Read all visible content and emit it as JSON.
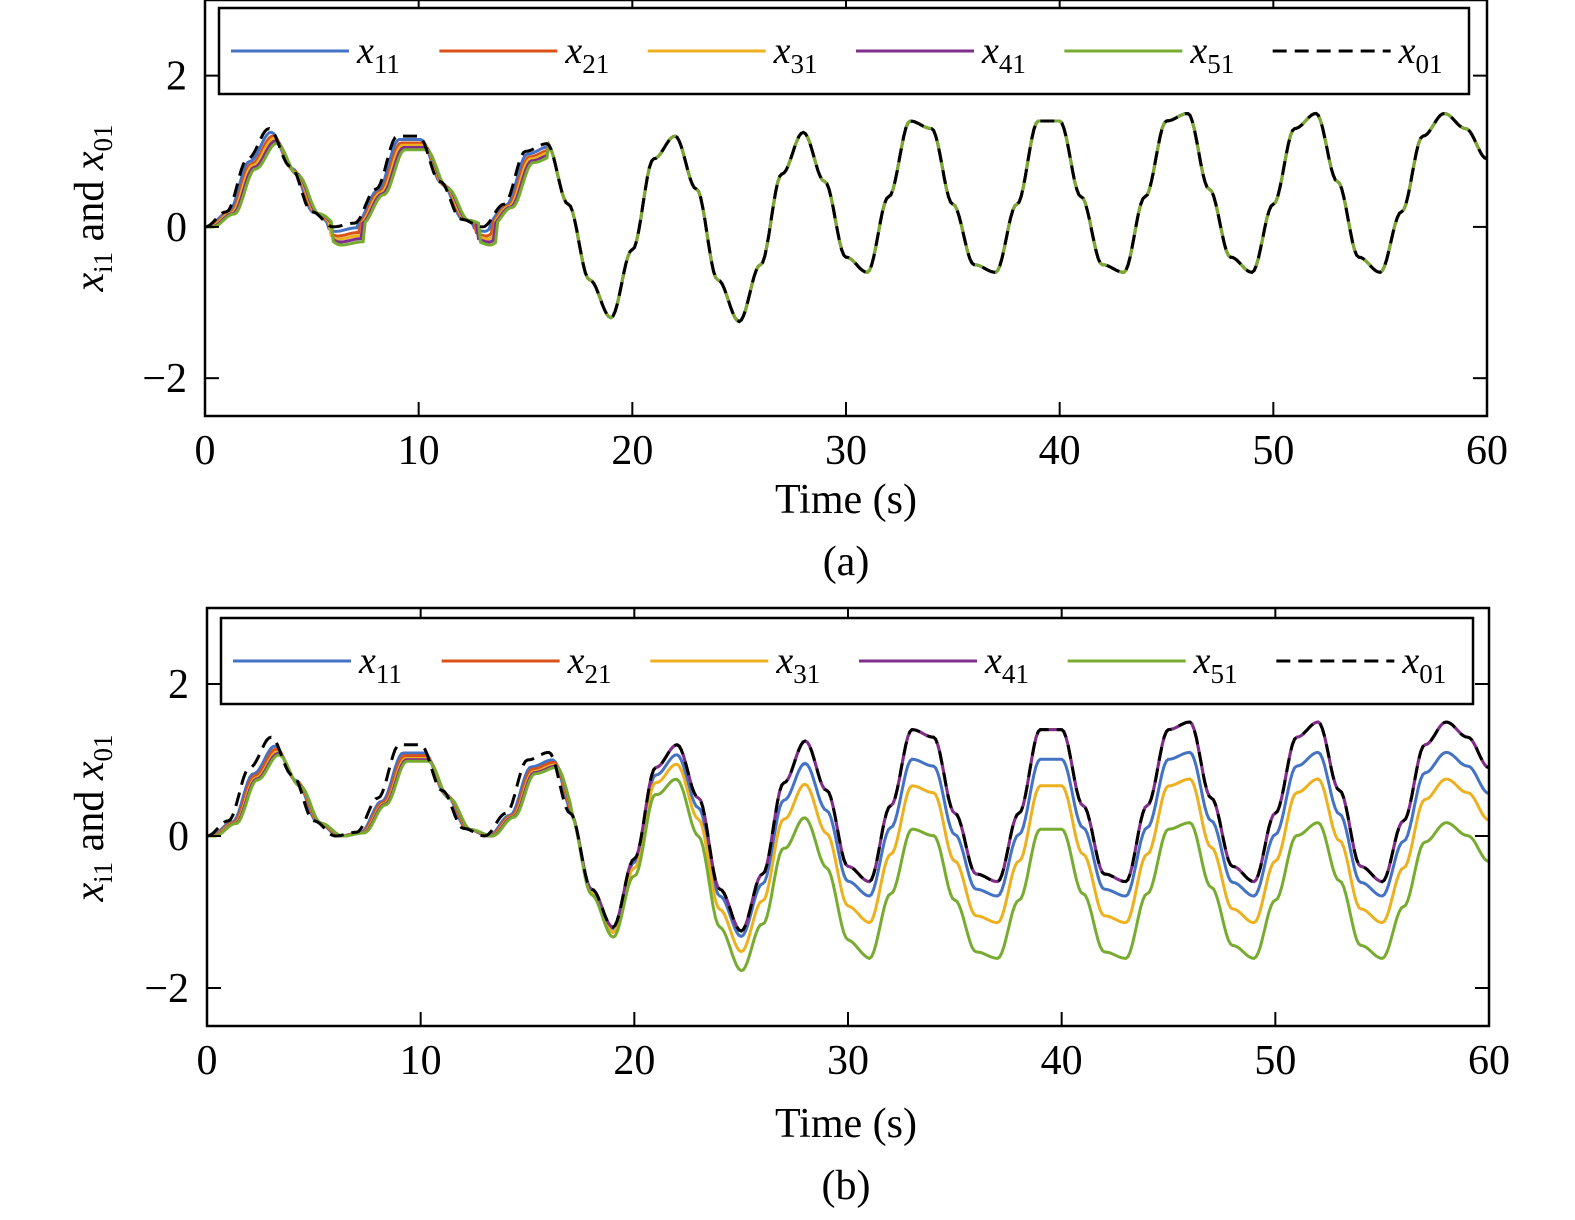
{
  "chart_data": [
    {
      "panel": "(a)",
      "type": "line",
      "xlabel": "Time (s)",
      "ylabel": "x_i1 and x_01",
      "ylabel_parts": {
        "a": "x",
        "a_sub": "i1",
        "mid": " and ",
        "b": "x",
        "b_sub": "01"
      },
      "xlim": [
        0,
        60
      ],
      "ylim": [
        -2.5,
        3
      ],
      "xticks": [
        0,
        10,
        20,
        30,
        40,
        50,
        60
      ],
      "yticks": [
        -2,
        0,
        2
      ],
      "ytick_labels": [
        "−2",
        "0",
        "2"
      ],
      "legend_position": "top",
      "series": [
        {
          "name": "x",
          "sub": "11",
          "color": "#4472C4",
          "dash": "solid"
        },
        {
          "name": "x",
          "sub": "21",
          "color": "#D95319",
          "dash": "solid"
        },
        {
          "name": "x",
          "sub": "31",
          "color": "#EDB120",
          "dash": "solid"
        },
        {
          "name": "x",
          "sub": "41",
          "color": "#7E2F8E",
          "dash": "solid"
        },
        {
          "name": "x",
          "sub": "51",
          "color": "#77AC30",
          "dash": "solid"
        },
        {
          "name": "x",
          "sub": "01",
          "color": "#000000",
          "dash": "dashed"
        }
      ],
      "reference_x": [
        0,
        1,
        2,
        3,
        4,
        5,
        6,
        7,
        8,
        9,
        10,
        11,
        12,
        13,
        14,
        15,
        16,
        17,
        18,
        19,
        20,
        21,
        22,
        23,
        24,
        25,
        26,
        27,
        28,
        29,
        30,
        31,
        32,
        33,
        34,
        35,
        36,
        37,
        38,
        39,
        40,
        41,
        42,
        43,
        44,
        45,
        46,
        47,
        48,
        49,
        50,
        51,
        52,
        53,
        54,
        55,
        56,
        57,
        58,
        59,
        60
      ],
      "reference_y": [
        0,
        0.2,
        0.9,
        1.3,
        0.8,
        0.2,
        0.0,
        0.05,
        0.5,
        1.2,
        1.2,
        0.6,
        0.1,
        0.0,
        0.3,
        1.0,
        1.1,
        0.3,
        -0.7,
        -1.2,
        -0.3,
        0.9,
        1.2,
        0.5,
        -0.7,
        -1.25,
        -0.5,
        0.7,
        1.25,
        0.6,
        -0.4,
        -0.6,
        0.4,
        1.4,
        1.3,
        0.3,
        -0.5,
        -0.6,
        0.3,
        1.4,
        1.4,
        0.4,
        -0.5,
        -0.6,
        0.4,
        1.4,
        1.5,
        0.5,
        -0.4,
        -0.6,
        0.3,
        1.3,
        1.5,
        0.6,
        -0.4,
        -0.6,
        0.2,
        1.2,
        1.5,
        1.3,
        0.9
      ],
      "offsets": [
        {
          "kind": "lag",
          "early": 0.15
        },
        {
          "kind": "lag",
          "early": 0.3
        },
        {
          "kind": "lag",
          "early": 0.4
        },
        {
          "kind": "lag",
          "early": 0.5
        },
        {
          "kind": "lag",
          "early": 0.6
        },
        {
          "kind": "none",
          "early": 0
        }
      ]
    },
    {
      "panel": "(b)",
      "type": "line",
      "xlabel": "Time (s)",
      "ylabel": "x_i1 and x_01",
      "ylabel_parts": {
        "a": "x",
        "a_sub": "i1",
        "mid": " and ",
        "b": "x",
        "b_sub": "01"
      },
      "xlim": [
        0,
        60
      ],
      "ylim": [
        -2.5,
        3
      ],
      "xticks": [
        0,
        10,
        20,
        30,
        40,
        50,
        60
      ],
      "yticks": [
        -2,
        0,
        2
      ],
      "ytick_labels": [
        "−2",
        "0",
        "2"
      ],
      "legend_position": "top",
      "series": [
        {
          "name": "x",
          "sub": "11",
          "color": "#4472C4",
          "dash": "solid"
        },
        {
          "name": "x",
          "sub": "21",
          "color": "#D95319",
          "dash": "solid"
        },
        {
          "name": "x",
          "sub": "31",
          "color": "#EDB120",
          "dash": "solid"
        },
        {
          "name": "x",
          "sub": "41",
          "color": "#7E2F8E",
          "dash": "solid"
        },
        {
          "name": "x",
          "sub": "51",
          "color": "#77AC30",
          "dash": "solid"
        },
        {
          "name": "x",
          "sub": "01",
          "color": "#000000",
          "dash": "dashed"
        }
      ],
      "reference_x": [
        0,
        1,
        2,
        3,
        4,
        5,
        6,
        7,
        8,
        9,
        10,
        11,
        12,
        13,
        14,
        15,
        16,
        17,
        18,
        19,
        20,
        21,
        22,
        23,
        24,
        25,
        26,
        27,
        28,
        29,
        30,
        31,
        32,
        33,
        34,
        35,
        36,
        37,
        38,
        39,
        40,
        41,
        42,
        43,
        44,
        45,
        46,
        47,
        48,
        49,
        50,
        51,
        52,
        53,
        54,
        55,
        56,
        57,
        58,
        59,
        60
      ],
      "reference_y": [
        0,
        0.2,
        0.9,
        1.3,
        0.8,
        0.2,
        0.0,
        0.05,
        0.5,
        1.2,
        1.2,
        0.6,
        0.1,
        0.0,
        0.3,
        1.0,
        1.1,
        0.3,
        -0.7,
        -1.2,
        -0.3,
        0.9,
        1.2,
        0.5,
        -0.7,
        -1.25,
        -0.5,
        0.7,
        1.25,
        0.6,
        -0.4,
        -0.6,
        0.4,
        1.4,
        1.3,
        0.3,
        -0.5,
        -0.6,
        0.3,
        1.4,
        1.4,
        0.4,
        -0.5,
        -0.6,
        0.4,
        1.4,
        1.5,
        0.5,
        -0.4,
        -0.6,
        0.3,
        1.3,
        1.5,
        0.6,
        -0.4,
        -0.6,
        0.2,
        1.2,
        1.5,
        1.3,
        0.9
      ],
      "offsets": [
        {
          "kind": "drift",
          "early": 0.3,
          "late_shift": -0.25,
          "late_scale": 0.9
        },
        {
          "kind": "drift",
          "early": 0.4,
          "late_shift": 0.0,
          "late_scale": 1.0
        },
        {
          "kind": "drift",
          "early": 0.5,
          "late_shift": -0.6,
          "late_scale": 0.9
        },
        {
          "kind": "drift",
          "early": 0.55,
          "late_shift": 0.0,
          "late_scale": 1.0
        },
        {
          "kind": "drift",
          "early": 0.6,
          "late_shift": -1.1,
          "late_scale": 0.85
        },
        {
          "kind": "none",
          "early": 0
        }
      ]
    }
  ],
  "captions": [
    "(a)",
    "(b)"
  ]
}
